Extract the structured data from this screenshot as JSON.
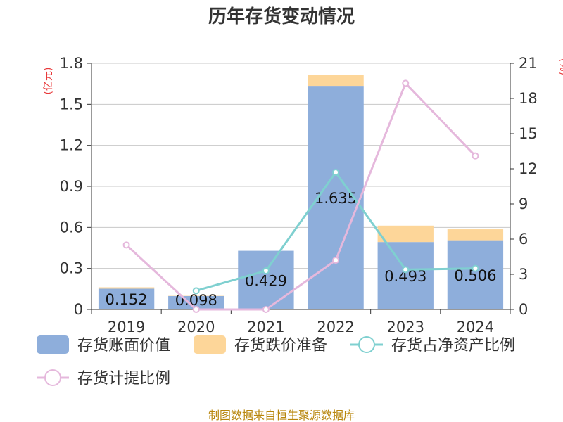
{
  "title": "历年存货变动情况",
  "left_unit": "(亿元)",
  "right_unit": "(%)",
  "source": "制图数据来自恒生聚源数据库",
  "colors": {
    "book_value": "#8eaedb",
    "impairment": "#fdd699",
    "net_asset_ratio": "#7fd0d0",
    "provision_ratio": "#e5b8dc",
    "unit": "#e8393a",
    "source": "#b8860b"
  },
  "chart_data": {
    "type": "bar",
    "title": "历年存货变动情况",
    "categories": [
      "2019",
      "2020",
      "2021",
      "2022",
      "2023",
      "2024"
    ],
    "y_left": {
      "range": [
        0,
        1.8
      ],
      "ticks": [
        "0",
        "0.3",
        "0.6",
        "0.9",
        "1.2",
        "1.5",
        "1.8"
      ]
    },
    "y_right": {
      "range": [
        0,
        21
      ],
      "ticks": [
        "0",
        "3",
        "6",
        "9",
        "12",
        "15",
        "18",
        "21"
      ]
    },
    "grid": true,
    "legend_position": "bottom",
    "series": [
      {
        "name": "存货账面价值",
        "type": "bar",
        "stack": "inventory",
        "axis": "left",
        "values": [
          0.152,
          0.098,
          0.429,
          1.635,
          0.493,
          0.506
        ],
        "labels": [
          "0.152",
          "0.098",
          "0.429",
          "1.635",
          "0.493",
          "0.506"
        ]
      },
      {
        "name": "存货跌价准备",
        "type": "bar",
        "stack": "inventory",
        "axis": "left",
        "values": [
          0.01,
          0.002,
          0.0,
          0.08,
          0.12,
          0.08
        ]
      },
      {
        "name": "存货占净资产比例",
        "type": "line",
        "axis": "right",
        "values": [
          null,
          1.6,
          3.3,
          11.7,
          3.4,
          3.5
        ]
      },
      {
        "name": "存货计提比例",
        "type": "line",
        "axis": "right",
        "values": [
          5.5,
          0.0,
          0.0,
          4.2,
          19.3,
          13.1
        ]
      }
    ]
  }
}
